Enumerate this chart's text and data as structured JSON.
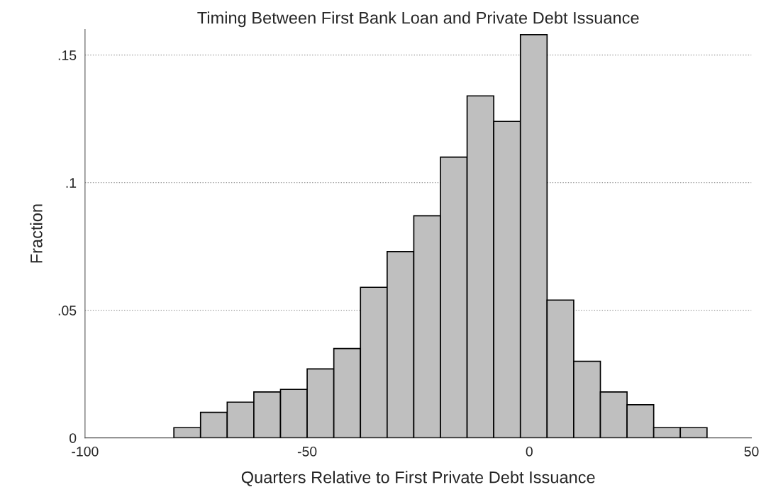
{
  "chart_data": {
    "type": "histogram",
    "title": "Timing Between First Bank Loan and Private Debt Issuance",
    "xlabel": "Quarters Relative to First Private Debt Issuance",
    "ylabel": "Fraction",
    "bins": [
      -80,
      -74,
      -68,
      -62,
      -56,
      -50,
      -44,
      -38,
      -32,
      -26,
      -20,
      -14,
      -8,
      -2,
      4,
      10,
      16,
      22,
      28,
      34,
      40
    ],
    "values": [
      0.004,
      0.01,
      0.014,
      0.018,
      0.019,
      0.027,
      0.035,
      0.059,
      0.073,
      0.087,
      0.11,
      0.134,
      0.124,
      0.158,
      0.054,
      0.03,
      0.018,
      0.013,
      0.004,
      0.004
    ],
    "color": "#bfbfbf",
    "xlim": [
      -100,
      50
    ],
    "xticks": [
      -100,
      -50,
      0,
      50
    ],
    "ylim": [
      0,
      0.16
    ],
    "yticks": [
      {
        "value": 0,
        "label": "0"
      },
      {
        "value": 0.05,
        "label": ".05"
      },
      {
        "value": 0.1,
        "label": ".1"
      },
      {
        "value": 0.15,
        "label": ".15"
      }
    ],
    "grid": "y"
  }
}
